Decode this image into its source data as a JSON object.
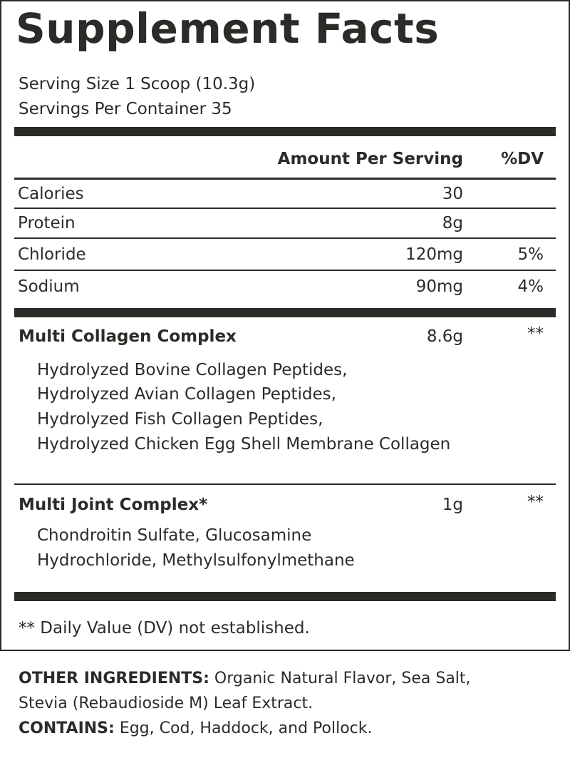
{
  "title": "Supplement Facts",
  "serving_size": "Serving Size 1 Scoop (10.3g)",
  "servings_per_container": "Servings Per Container 35",
  "header": {
    "amount": "Amount Per Serving",
    "dv": "%DV"
  },
  "nutrients": [
    {
      "name": "Calories",
      "amount": "30",
      "dv": ""
    },
    {
      "name": "Protein",
      "amount": "8g",
      "dv": ""
    },
    {
      "name": "Chloride",
      "amount": "120mg",
      "dv": "5%"
    },
    {
      "name": "Sodium",
      "amount": "90mg",
      "dv": "4%"
    }
  ],
  "blends": [
    {
      "name": "Multi Collagen Complex",
      "amount": "8.6g",
      "dv": "**",
      "ingredients": [
        "Hydrolyzed Bovine Collagen Peptides,",
        "Hydrolyzed Avian Collagen Peptides,",
        "Hydrolyzed Fish Collagen Peptides,",
        "Hydrolyzed Chicken Egg Shell Membrane Collagen"
      ]
    },
    {
      "name": "Multi Joint Complex*",
      "amount": "1g",
      "dv": "**",
      "ingredients": [
        "Chondroitin Sulfate, Glucosamine",
        "Hydrochloride, Methylsulfonylmethane"
      ]
    }
  ],
  "footnote": "** Daily Value (DV) not established.",
  "other_ingredients": {
    "label": "OTHER INGREDIENTS:",
    "line1": " Organic Natural Flavor, Sea Salt,",
    "line2": "Stevia (Rebaudioside M) Leaf Extract."
  },
  "contains": {
    "label": "CONTAINS:",
    "text": " Egg, Cod, Haddock, and Pollock."
  }
}
